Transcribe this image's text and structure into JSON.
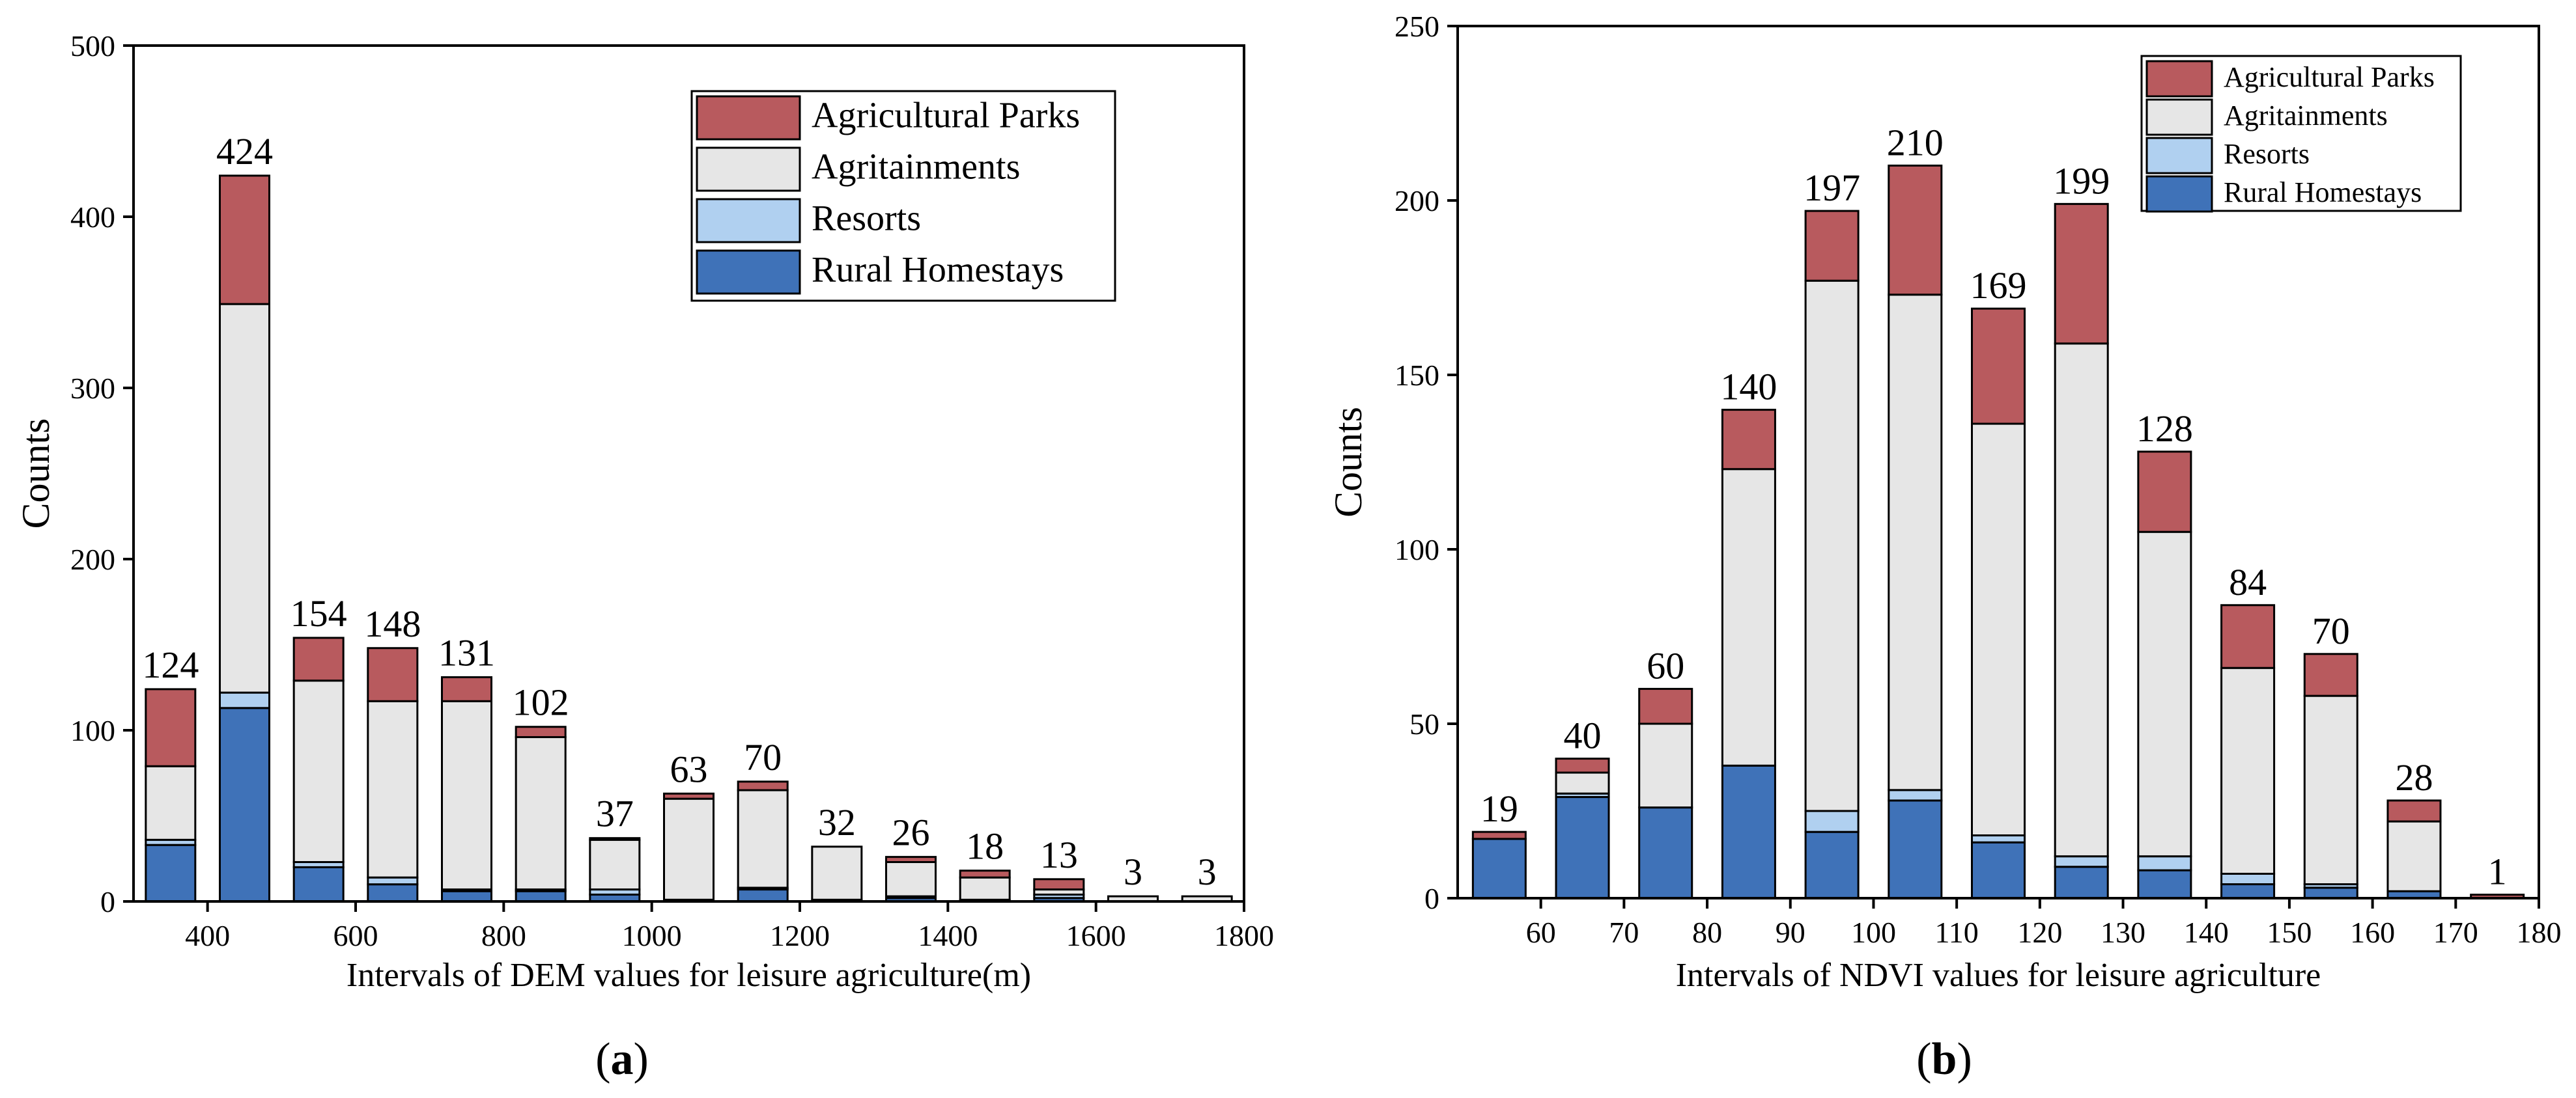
{
  "chart_data": [
    {
      "type": "bar",
      "stacked": true,
      "panel_label": "(a)",
      "panel_letter": "a",
      "title": "",
      "xlabel": "Intervals of DEM values for leisure agriculture(m)",
      "ylabel": "Counts",
      "ylim": [
        0,
        500
      ],
      "yticks": [
        0,
        100,
        200,
        300,
        400,
        500
      ],
      "xlim": [
        300,
        1800
      ],
      "xticks": [
        400,
        600,
        800,
        1000,
        1200,
        1400,
        1600,
        1800
      ],
      "x_centers": [
        350,
        450,
        550,
        650,
        750,
        850,
        950,
        1050,
        1150,
        1250,
        1350,
        1450,
        1550,
        1650,
        1750
      ],
      "legend_position": "top-right",
      "series": [
        {
          "name": "Rural Homestays",
          "color": "#3f72b8",
          "values": [
            33,
            113,
            20,
            10,
            6,
            6,
            4,
            1,
            7,
            1,
            2,
            1,
            2,
            0,
            0
          ]
        },
        {
          "name": "Resorts",
          "color": "#b0d0f0",
          "values": [
            3,
            9,
            3,
            4,
            1,
            1,
            3,
            0,
            1,
            0,
            1,
            0,
            2,
            0,
            0
          ]
        },
        {
          "name": "Agritainments",
          "color": "#e6e6e6",
          "values": [
            43,
            227,
            106,
            103,
            110,
            89,
            29,
            59,
            57,
            31,
            20,
            13,
            3,
            3,
            3
          ]
        },
        {
          "name": "Agricultural Parks",
          "color": "#b85a5e",
          "values": [
            45,
            75,
            25,
            31,
            14,
            6,
            1,
            3,
            5,
            0,
            3,
            4,
            6,
            0,
            0
          ]
        }
      ],
      "totals": [
        "124",
        "424",
        "154",
        "148",
        "131",
        "102",
        "37",
        "63",
        "70",
        "32",
        "26",
        "18",
        "13",
        "3",
        "3"
      ]
    },
    {
      "type": "bar",
      "stacked": true,
      "panel_label": "(b)",
      "panel_letter": "b",
      "title": "",
      "xlabel": "Intervals of NDVI values for leisure agriculture",
      "ylabel": "Counts",
      "ylim": [
        0,
        250
      ],
      "yticks": [
        0,
        50,
        100,
        150,
        200,
        250
      ],
      "xlim": [
        50,
        180
      ],
      "xticks": [
        60,
        70,
        80,
        90,
        100,
        110,
        120,
        130,
        140,
        150,
        160,
        170,
        180
      ],
      "x_centers": [
        55,
        65,
        75,
        85,
        95,
        105,
        115,
        125,
        135,
        145,
        155,
        165,
        175
      ],
      "legend_position": "top-right",
      "series": [
        {
          "name": "Rural Homestays",
          "color": "#3f72b8",
          "values": [
            17,
            29,
            26,
            38,
            19,
            28,
            16,
            9,
            8,
            4,
            3,
            2,
            0
          ]
        },
        {
          "name": "Resorts",
          "color": "#b0d0f0",
          "values": [
            0,
            1,
            0,
            0,
            6,
            3,
            2,
            3,
            4,
            3,
            1,
            0,
            0
          ]
        },
        {
          "name": "Agritainments",
          "color": "#e6e6e6",
          "values": [
            0,
            6,
            24,
            85,
            152,
            142,
            118,
            147,
            93,
            59,
            54,
            20,
            0
          ]
        },
        {
          "name": "Agricultural Parks",
          "color": "#b85a5e",
          "values": [
            2,
            4,
            10,
            17,
            20,
            37,
            33,
            40,
            23,
            18,
            12,
            6,
            1
          ]
        }
      ],
      "totals": [
        "19",
        "40",
        "60",
        "140",
        "197",
        "210",
        "169",
        "199",
        "128",
        "84",
        "70",
        "28",
        "1"
      ]
    }
  ]
}
